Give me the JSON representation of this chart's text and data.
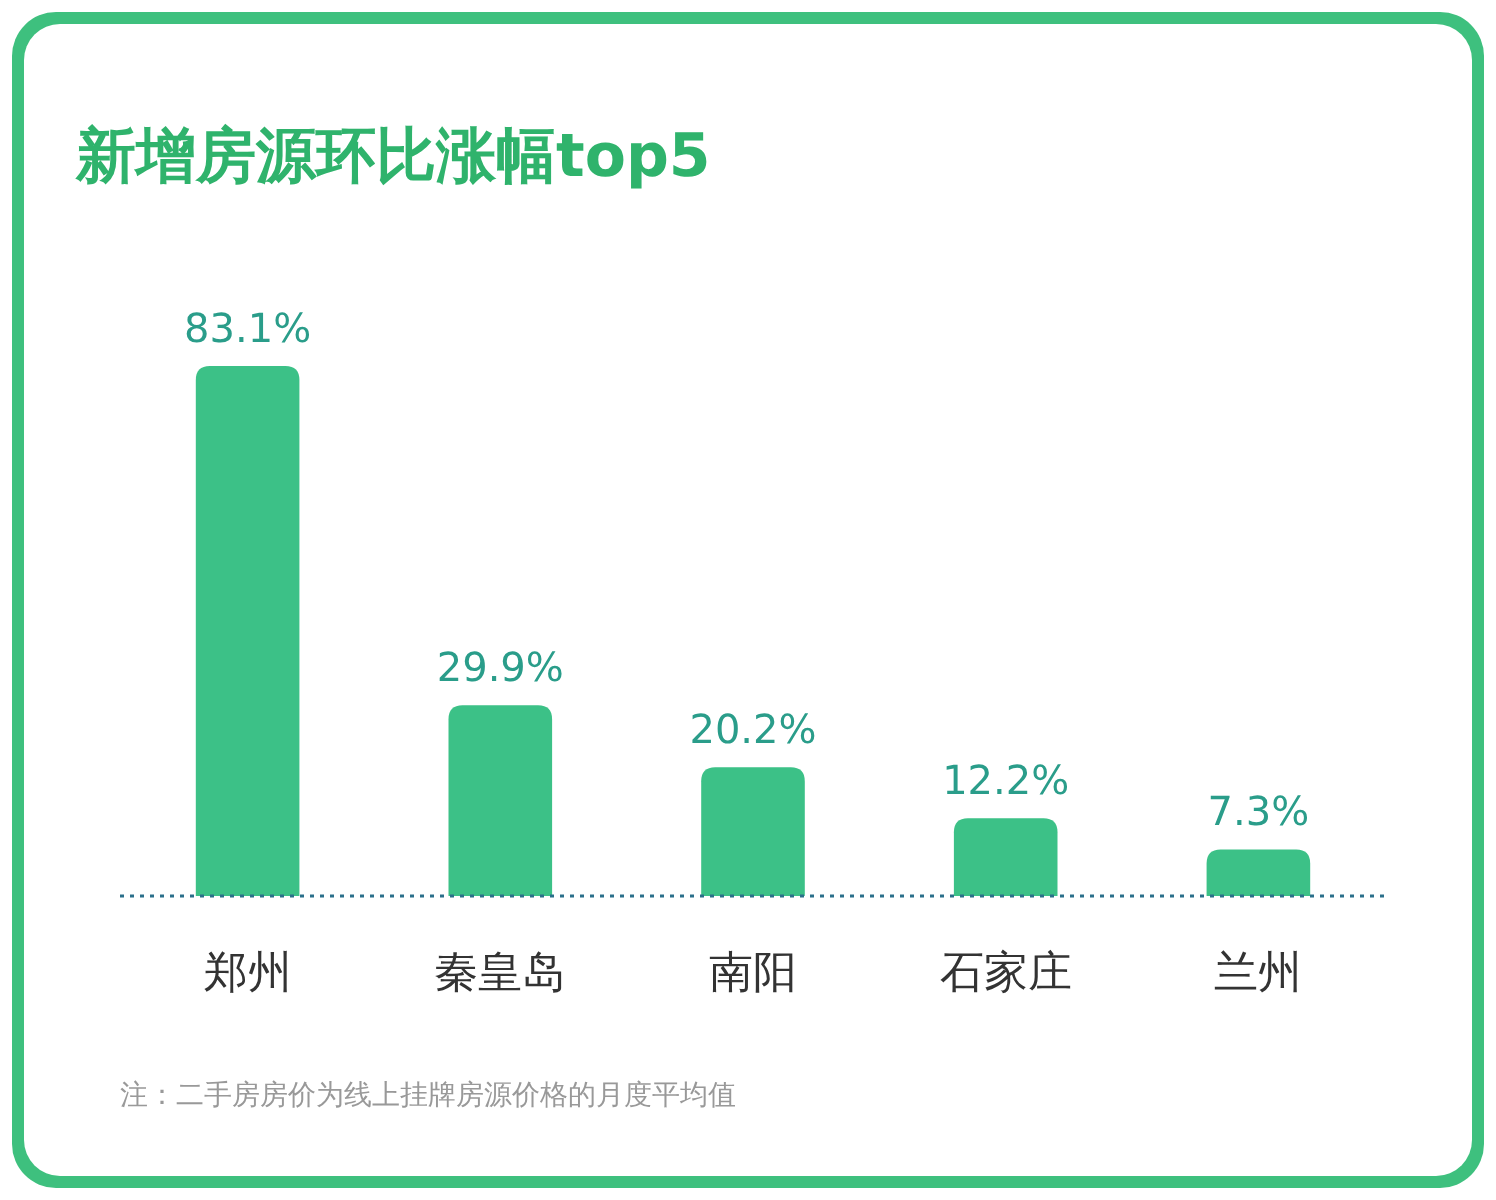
{
  "chart_data": {
    "type": "bar",
    "title": "新增房源环比涨幅top5",
    "categories": [
      "郑州",
      "秦皇岛",
      "南阳",
      "石家庄",
      "兰州"
    ],
    "values": [
      83.1,
      29.9,
      20.2,
      12.2,
      7.3
    ],
    "value_labels": [
      "83.1%",
      "29.9%",
      "20.2%",
      "12.2%",
      "7.3%"
    ],
    "color": "#3cc187",
    "relative": false,
    "annotations": [
      "注：二手房房价为线上挂牌房源价格的月度平均值"
    ]
  }
}
